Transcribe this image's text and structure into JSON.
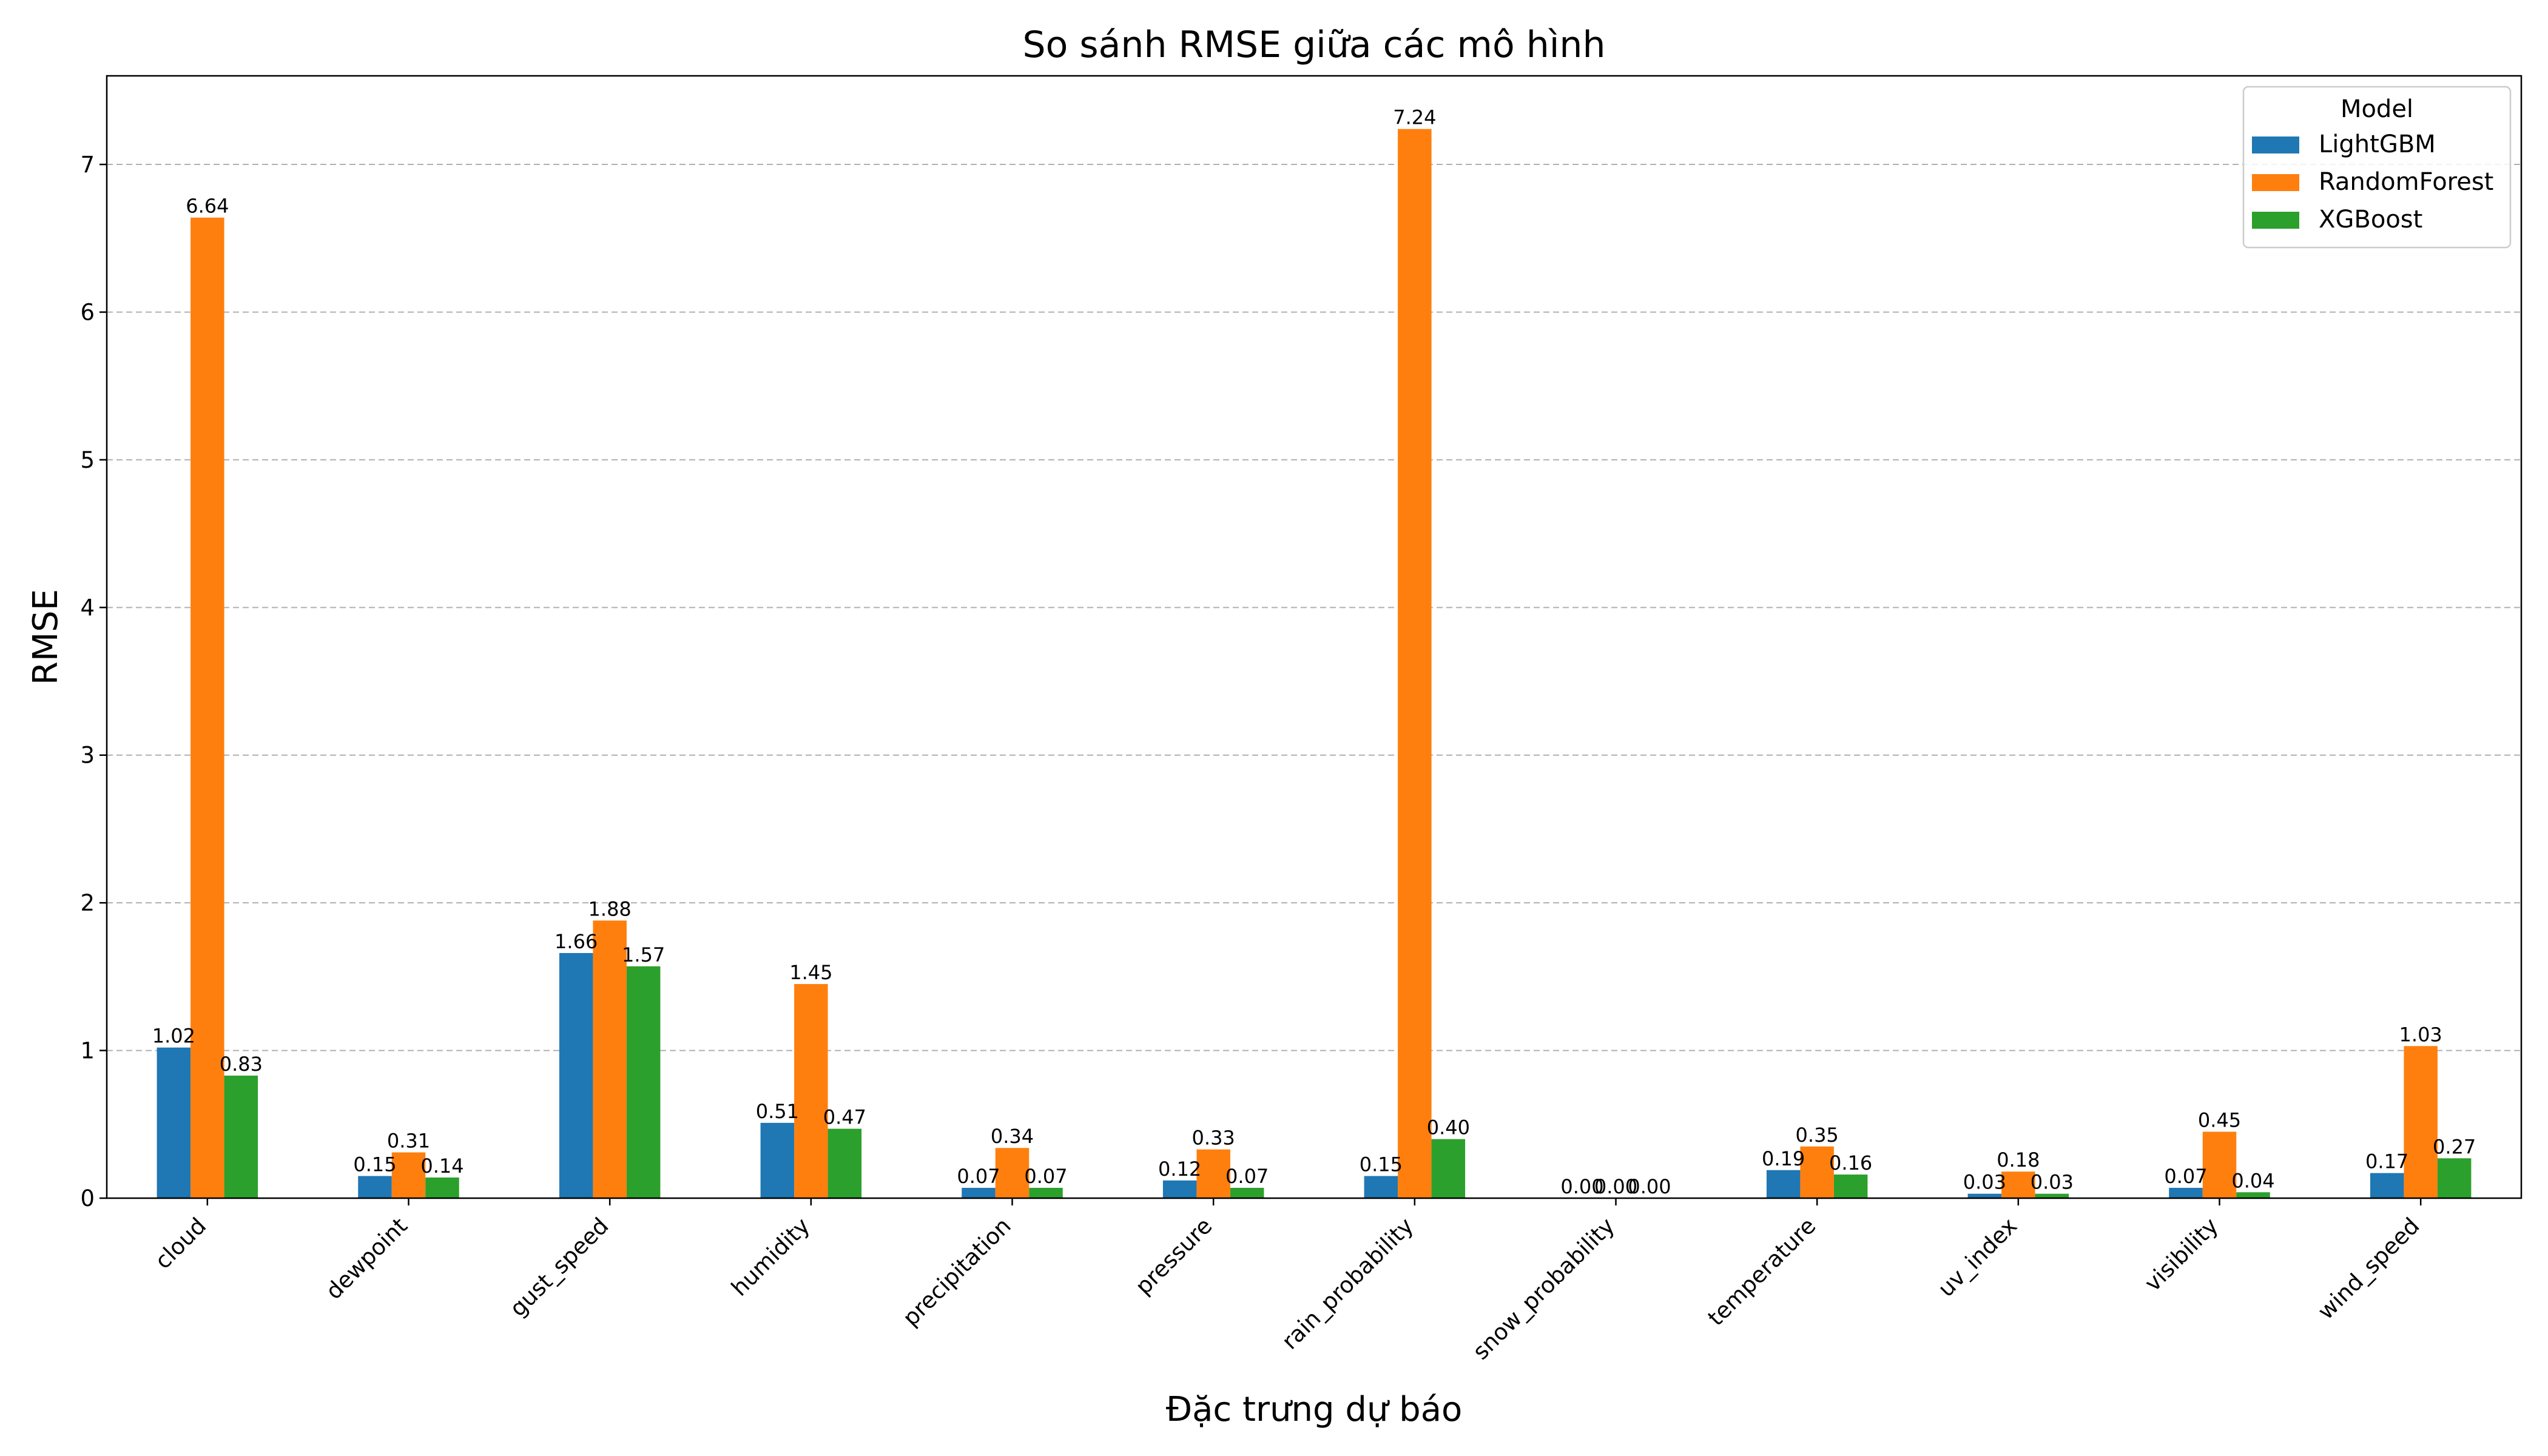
{
  "chart_data": {
    "type": "bar",
    "title": "So sánh RMSE giữa các mô hình",
    "xlabel": "Đặc trưng dự báo",
    "ylabel": "RMSE",
    "ylim": [
      0,
      7.6
    ],
    "yticks": [
      "0",
      "1",
      "2",
      "3",
      "4",
      "5",
      "6",
      "7"
    ],
    "grid": "horizontal dashed",
    "legend_title": "Model",
    "legend_position": "top-right",
    "categories": [
      "cloud",
      "dewpoint",
      "gust_speed",
      "humidity",
      "precipitation",
      "pressure",
      "rain_probability",
      "snow_probability",
      "temperature",
      "uv_index",
      "visibility",
      "wind_speed"
    ],
    "series": [
      {
        "name": "LightGBM",
        "color": "#1f77b4",
        "values": [
          1.02,
          0.15,
          1.66,
          0.51,
          0.07,
          0.12,
          0.15,
          0.0,
          0.19,
          0.03,
          0.07,
          0.17
        ],
        "labels": [
          "1.02",
          "0.15",
          "1.66",
          "0.51",
          "0.07",
          "0.12",
          "0.15",
          "0.00",
          "0.19",
          "0.03",
          "0.07",
          "0.17"
        ]
      },
      {
        "name": "RandomForest",
        "color": "#ff7f0e",
        "values": [
          6.64,
          0.31,
          1.88,
          1.45,
          0.34,
          0.33,
          7.24,
          0.0,
          0.35,
          0.18,
          0.45,
          1.03
        ],
        "labels": [
          "6.64",
          "0.31",
          "1.88",
          "1.45",
          "0.34",
          "0.33",
          "7.24",
          "0.00",
          "0.35",
          "0.18",
          "0.45",
          "1.03"
        ]
      },
      {
        "name": "XGBoost",
        "color": "#2ca02c",
        "values": [
          0.83,
          0.14,
          1.57,
          0.47,
          0.07,
          0.07,
          0.4,
          0.0,
          0.16,
          0.03,
          0.04,
          0.27
        ],
        "labels": [
          "0.83",
          "0.14",
          "1.57",
          "0.47",
          "0.07",
          "0.07",
          "0.40",
          "0.00",
          "0.16",
          "0.03",
          "0.04",
          "0.27"
        ]
      }
    ]
  }
}
